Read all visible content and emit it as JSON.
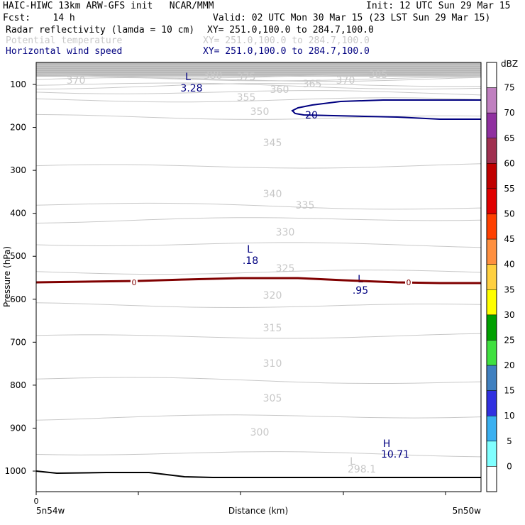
{
  "header": {
    "title": "HAIC-HIWC 13km ARW-GFS init   NCAR/MMM",
    "init": "Init: 12 UTC Sun 29 Mar 15",
    "fcst": "Fcst:    14 h",
    "valid": "Valid: 02 UTC Mon 30 Mar 15 (23 LST Sun 29 Mar 15)",
    "fields": [
      {
        "name": "Radar reflectivity (lamda = 10 cm)",
        "xy": "XY= 251.0,100.0 to 284.7,100.0",
        "color": "#000000"
      },
      {
        "name": "Potential temperature",
        "xy": "XY= 251.0,100.0 to 284.7,100.0",
        "color": "#c8c8c8"
      },
      {
        "name": "Horizontal wind speed",
        "xy": "XY= 251.0,100.0 to 284.7,100.0",
        "color": "#000080"
      }
    ]
  },
  "chart_data": {
    "type": "contour",
    "xlabel": "Distance (km)",
    "ylabel": "Pressure (hPa)",
    "x_left_label": "5n54w",
    "x_right_label": "5n50w",
    "x_zero_label": "0",
    "yticks": [
      100,
      200,
      300,
      400,
      500,
      600,
      700,
      800,
      900,
      1000
    ],
    "ylim": [
      1050,
      55
    ],
    "theta_contours": [
      {
        "value": 298.1,
        "type": "min_label"
      },
      {
        "value": 300,
        "p": 957
      },
      {
        "value": 305,
        "p": 877
      },
      {
        "value": 310,
        "p": 785
      },
      {
        "value": 315,
        "p": 688
      },
      {
        "value": 320,
        "p": 613
      },
      {
        "value": 325,
        "p": 537
      },
      {
        "value": 330,
        "p": 470
      },
      {
        "value": 335,
        "p": 418
      },
      {
        "value": 340,
        "p": 379
      },
      {
        "value": 345,
        "p": 292
      },
      {
        "value": 350,
        "p": 175
      },
      {
        "value": 355,
        "p": 136
      },
      {
        "value": 360,
        "p": 116
      },
      {
        "value": 365,
        "p": 106
      },
      {
        "value": 370,
        "p": 99
      },
      {
        "value": 375,
        "p": 90
      },
      {
        "value": 380,
        "p": 85
      },
      {
        "value": 385,
        "p": 80
      }
    ],
    "theta_labels": [
      "370",
      "380",
      "375",
      "360",
      "365",
      "370",
      "385",
      "355",
      "350",
      "345",
      "340",
      "335",
      "330",
      "325",
      "320",
      "315",
      "310",
      "305",
      "300",
      "298.1"
    ],
    "wind_labels": [
      {
        "text": "L",
        "value": "3.28"
      },
      {
        "text": "20"
      },
      {
        "text": "L",
        "value": ".18"
      },
      {
        "text": "L",
        "value": ".95"
      },
      {
        "text": "H",
        "value": "10.71"
      }
    ],
    "freezing_level": {
      "label": "0",
      "color": "#800000"
    },
    "colorbar": {
      "unit": "dBZ",
      "levels": [
        75,
        70,
        65,
        60,
        55,
        50,
        45,
        40,
        35,
        30,
        25,
        20,
        15,
        10,
        5,
        0
      ],
      "colors": [
        "#ffffff",
        "#c080c0",
        "#9030a0",
        "#a03050",
        "#c00000",
        "#e00000",
        "#ff4000",
        "#ff9040",
        "#ffd040",
        "#ffff00",
        "#00a000",
        "#40e040",
        "#4080c0",
        "#3030e0",
        "#3ab0f0",
        "#80ffff",
        "#ffffff"
      ]
    },
    "grid": true
  }
}
